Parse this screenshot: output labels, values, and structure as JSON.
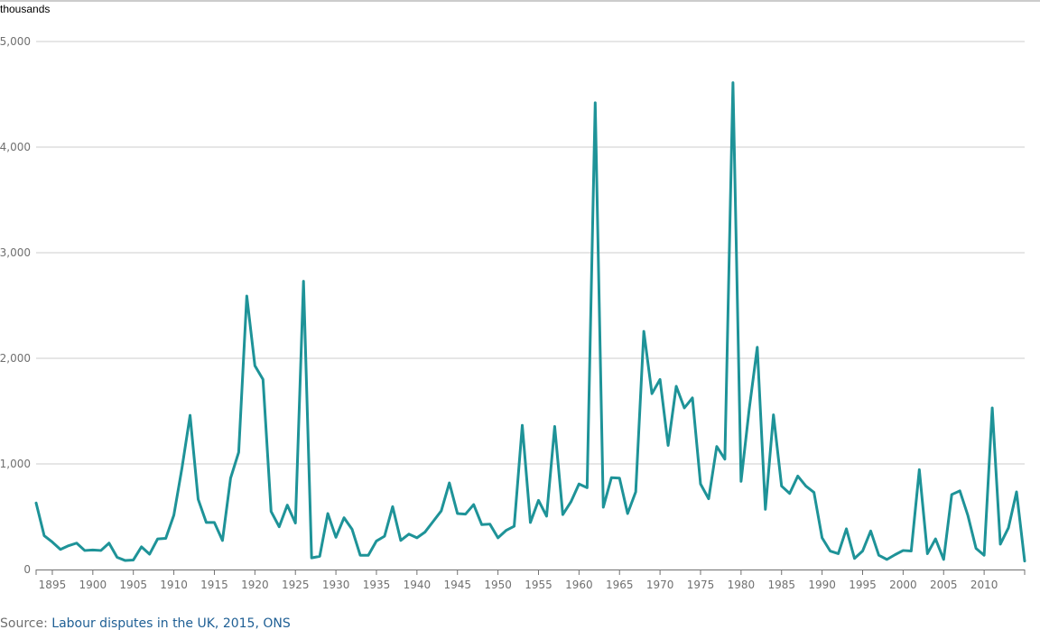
{
  "chart_data": {
    "type": "line",
    "title": "",
    "xlabel": "",
    "ylabel": "thousands",
    "xlim": [
      1893,
      2015
    ],
    "ylim": [
      0,
      5000
    ],
    "grid": true,
    "x_ticks": [
      1895,
      1900,
      1905,
      1910,
      1915,
      1920,
      1925,
      1930,
      1935,
      1940,
      1945,
      1950,
      1955,
      1960,
      1965,
      1970,
      1975,
      1980,
      1985,
      1990,
      1995,
      2000,
      2005,
      2010
    ],
    "y_ticks": [
      0,
      1000,
      2000,
      3000,
      4000,
      5000
    ],
    "y_tick_labels": [
      "0",
      "1,000",
      "2,000",
      "3,000",
      "4,000",
      "5,000"
    ],
    "colors": {
      "line": "#1e9398",
      "grid": "#cccccc",
      "axis": "#707070"
    },
    "series": [
      {
        "name": "",
        "x": [
          1893,
          1894,
          1895,
          1896,
          1897,
          1898,
          1899,
          1900,
          1901,
          1902,
          1903,
          1904,
          1905,
          1906,
          1907,
          1908,
          1909,
          1910,
          1911,
          1912,
          1913,
          1914,
          1915,
          1916,
          1917,
          1918,
          1919,
          1920,
          1921,
          1922,
          1923,
          1924,
          1925,
          1926,
          1927,
          1928,
          1929,
          1930,
          1931,
          1932,
          1933,
          1934,
          1935,
          1936,
          1937,
          1938,
          1939,
          1940,
          1941,
          1942,
          1943,
          1944,
          1945,
          1946,
          1947,
          1948,
          1949,
          1950,
          1951,
          1952,
          1953,
          1954,
          1955,
          1956,
          1957,
          1958,
          1959,
          1960,
          1961,
          1962,
          1963,
          1964,
          1965,
          1966,
          1967,
          1968,
          1969,
          1970,
          1971,
          1972,
          1973,
          1974,
          1975,
          1976,
          1977,
          1978,
          1979,
          1980,
          1981,
          1982,
          1983,
          1984,
          1985,
          1986,
          1987,
          1988,
          1989,
          1990,
          1991,
          1992,
          1993,
          1994,
          1995,
          1996,
          1997,
          1998,
          1999,
          2000,
          2001,
          2002,
          2003,
          2004,
          2005,
          2006,
          2007,
          2008,
          2009,
          2010,
          2011,
          2012,
          2013,
          2014,
          2015
        ],
        "values": [
          630,
          320,
          260,
          190,
          225,
          250,
          180,
          185,
          180,
          250,
          115,
          85,
          90,
          215,
          145,
          290,
          295,
          515,
          960,
          1460,
          665,
          445,
          445,
          275,
          865,
          1110,
          2590,
          1930,
          1800,
          550,
          405,
          610,
          440,
          2730,
          110,
          125,
          530,
          305,
          490,
          380,
          135,
          135,
          270,
          315,
          595,
          275,
          335,
          300,
          355,
          455,
          555,
          820,
          530,
          525,
          615,
          425,
          430,
          300,
          370,
          410,
          1365,
          445,
          655,
          505,
          1355,
          520,
          640,
          810,
          775,
          4420,
          590,
          870,
          865,
          530,
          735,
          2255,
          1665,
          1800,
          1175,
          1735,
          1530,
          1625,
          810,
          670,
          1165,
          1045,
          4610,
          835,
          1515,
          2105,
          570,
          1465,
          790,
          720,
          885,
          790,
          730,
          300,
          175,
          150,
          385,
          105,
          175,
          365,
          135,
          95,
          140,
          180,
          175,
          945,
          150,
          290,
          95,
          710,
          745,
          510,
          200,
          135,
          1530,
          240,
          395,
          735,
          80
        ]
      }
    ]
  },
  "source": {
    "prefix": "Source: ",
    "link_text": "Labour disputes in the UK, 2015, ONS"
  }
}
